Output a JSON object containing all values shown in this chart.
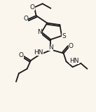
{
  "bg_color": "#faf6ee",
  "line_color": "#1a1a1a",
  "line_width": 1.3,
  "font_size": 6.5,
  "fig_width": 1.37,
  "fig_height": 1.59,
  "dpi": 100,
  "xlim": [
    0,
    10
  ],
  "ylim": [
    0,
    12
  ]
}
